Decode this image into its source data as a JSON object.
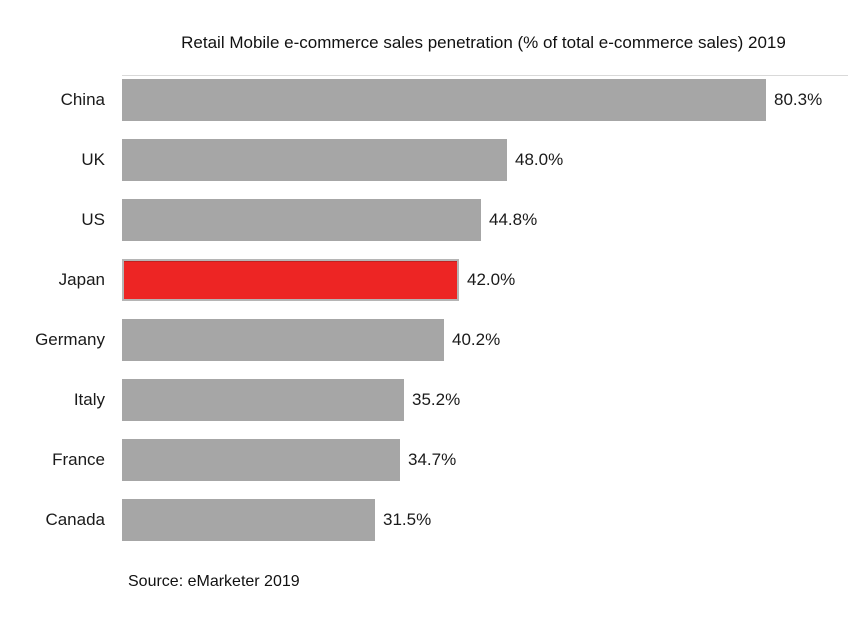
{
  "title": "Retail Mobile e-commerce sales penetration (% of total e-commerce sales) 2019",
  "source": "Source: eMarketer 2019",
  "chart_data": {
    "type": "bar",
    "orientation": "horizontal",
    "title": "Retail Mobile e-commerce sales penetration (% of total e-commerce sales) 2019",
    "categories": [
      "China",
      "UK",
      "US",
      "Japan",
      "Germany",
      "Italy",
      "France",
      "Canada"
    ],
    "values": [
      80.3,
      48.0,
      44.8,
      42.0,
      40.2,
      35.2,
      34.7,
      31.5
    ],
    "value_labels": [
      "80.3%",
      "48.0%",
      "44.8%",
      "42.0%",
      "40.2%",
      "35.2%",
      "34.7%",
      "31.5%"
    ],
    "highlighted_category": "Japan",
    "bar_color": "#a6a6a6",
    "highlight_color": "#ed2524",
    "highlight_border_color": "#b5b5b5",
    "xlabel": "",
    "ylabel": "",
    "xlim": [
      0,
      80.3
    ],
    "grid": false,
    "legend": false,
    "source": "Source: eMarketer 2019"
  }
}
